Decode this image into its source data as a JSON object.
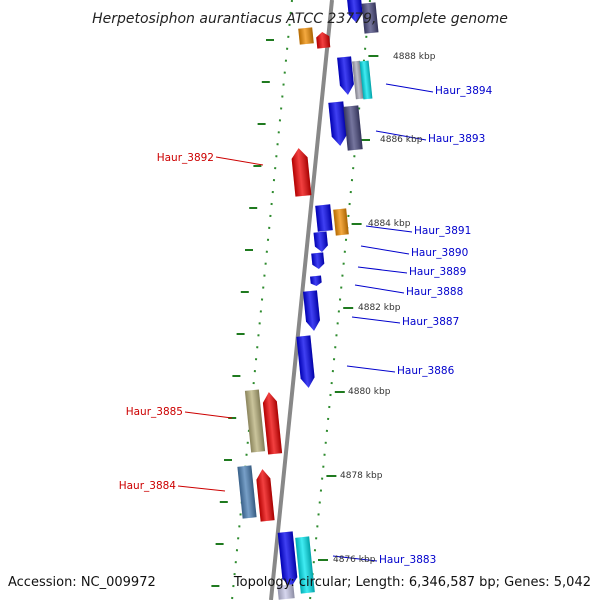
{
  "title": "Herpetosiphon aurantiacus ATCC 23779, complete genome",
  "footer": {
    "accession": "Accession: NC_009972",
    "summary": "Topology: circular; Length: 6,346,587 bp; Genes: 5,042"
  },
  "colors": {
    "forward_label": "#0000cc",
    "reverse_label": "#cc0000",
    "backbone": "#888888",
    "tick": "#228b22",
    "blue": "#0000ee",
    "navy": "#48487e",
    "red": "#ee0000",
    "orange": "#f08c00",
    "cyan": "#00e5ee",
    "steel": "#4a7fb5",
    "khaki": "#b8b07a",
    "silver": "#a9a9b8",
    "lavender": "#c8c8e8"
  },
  "kbp_markers": [
    "4888 kbp",
    "4886 kbp",
    "4884 kbp",
    "4882 kbp",
    "4880 kbp",
    "4878 kbp",
    "4876 kbp"
  ],
  "forward_labels": [
    "Haur_3894",
    "Haur_3893",
    "Haur_3891",
    "Haur_3890",
    "Haur_3889",
    "Haur_3888",
    "Haur_3887",
    "Haur_3886",
    "Haur_3883"
  ],
  "reverse_labels": [
    "Haur_3892",
    "Haur_3885",
    "Haur_3884"
  ]
}
